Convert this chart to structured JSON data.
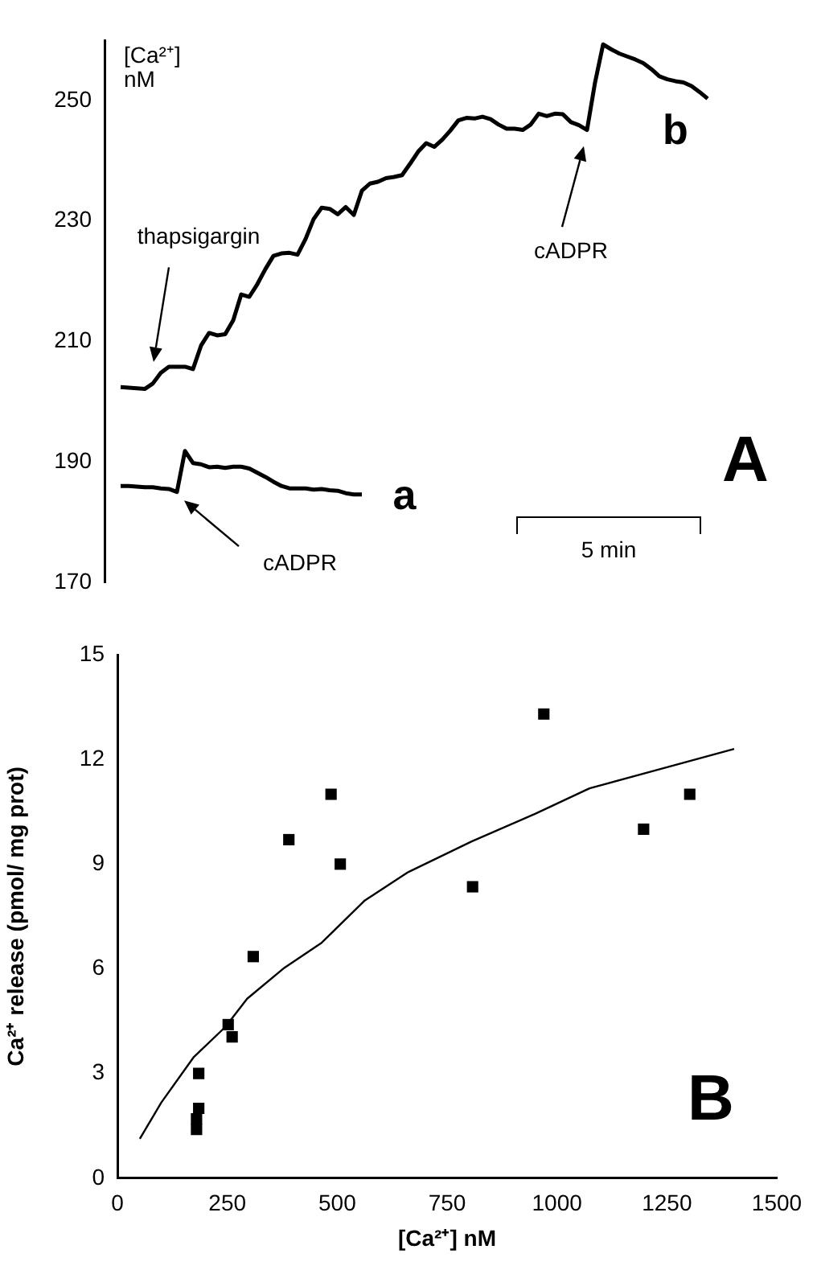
{
  "chart_data": [
    {
      "type": "line",
      "ylabel": "[Ca²⁺] nM",
      "categories": [
        null,
        null,
        null,
        null,
        null,
        null,
        null,
        null,
        null,
        null,
        null,
        null,
        null,
        null,
        null,
        null,
        null,
        null,
        null,
        null,
        null,
        null,
        null,
        null,
        null,
        null,
        null,
        null,
        null,
        null,
        null,
        null,
        null,
        null,
        null,
        null,
        null,
        null,
        null,
        null,
        null,
        null,
        null,
        null,
        null,
        null,
        null,
        null,
        null,
        null,
        null,
        null,
        null,
        null,
        null,
        null,
        null,
        null,
        null,
        null,
        null,
        null,
        null,
        null,
        null,
        null,
        null,
        null,
        null,
        null,
        null,
        null,
        null,
        null,
        null,
        null,
        null,
        null,
        null,
        null,
        null,
        null,
        null
      ],
      "series": [
        {
          "name": "b",
          "color": "#000000",
          "values": [
            null,
            null,
            202.4,
            202.3,
            202.2,
            202.1,
            203.0,
            204.8,
            205.8,
            205.8,
            205.8,
            205.4,
            209.3,
            211.4,
            211.0,
            211.2,
            213.5,
            217.8,
            217.4,
            219.5,
            222.0,
            224.2,
            224.6,
            224.7,
            224.4,
            227.0,
            230.3,
            232.2,
            232.0,
            231.1,
            232.3,
            231.0,
            235.0,
            236.2,
            236.5,
            237.1,
            237.3,
            237.6,
            239.5,
            241.5,
            242.9,
            242.3,
            243.5,
            245.0,
            246.7,
            247.1,
            247.0,
            247.3,
            246.9,
            246.0,
            245.3,
            245.3,
            245.1,
            246.0,
            247.8,
            247.4,
            247.8,
            247.7,
            246.4,
            245.9,
            245.1,
            253.0,
            259.3,
            258.5,
            257.8,
            257.3,
            256.8,
            256.2,
            255.2,
            254.0,
            253.5,
            253.2,
            253.0,
            252.4,
            251.4,
            250.3,
            null,
            null,
            null,
            null,
            null,
            null,
            null
          ]
        },
        {
          "name": "a",
          "color": "#000000",
          "values": [
            null,
            null,
            186.0,
            186.0,
            185.9,
            185.8,
            185.8,
            185.6,
            185.5,
            185.0,
            191.8,
            189.8,
            189.6,
            189.1,
            189.2,
            189.0,
            189.2,
            189.2,
            188.9,
            188.2,
            187.5,
            186.7,
            186.0,
            185.6,
            185.6,
            185.6,
            185.4,
            185.5,
            185.3,
            185.2,
            184.8,
            184.6,
            184.6,
            null,
            null,
            null,
            null,
            null,
            null,
            null,
            null,
            null,
            null,
            null,
            null,
            null,
            null,
            null,
            null,
            null,
            null,
            null,
            null,
            null,
            null,
            null,
            null,
            null,
            null,
            null,
            null,
            null,
            null,
            null,
            null,
            null,
            null,
            null,
            null,
            null,
            null,
            null,
            null,
            null,
            null,
            null,
            null,
            null,
            null,
            null,
            null,
            null,
            null
          ]
        }
      ],
      "ylim": [
        170,
        260
      ],
      "yticks": [
        170,
        190,
        210,
        230,
        250
      ],
      "tick_labels": "y",
      "annotations": [
        "thapsigargin",
        "cADPR",
        "cADPR",
        "5 min",
        "A"
      ]
    },
    {
      "type": "scatter",
      "xlabel": "[Ca²⁺] nM",
      "ylabel": "Ca²⁺ release (pmol/ mg prot)",
      "series": [
        {
          "color": "#000000",
          "marker": "square",
          "x": [
            180,
            180,
            185,
            185,
            252,
            261,
            309,
            390,
            486,
            507,
            808,
            970,
            1197,
            1302
          ],
          "values": [
            1.4,
            1.7,
            2.0,
            3.0,
            4.4,
            4.05,
            6.35,
            9.7,
            11.0,
            9.0,
            8.35,
            13.3,
            10.0,
            11.0
          ]
        },
        {
          "type": "line",
          "color": "#000000",
          "marker": "none",
          "x": [
            51,
            100,
            173,
            246,
            295,
            380,
            465,
            563,
            660,
            806,
            952,
            1074,
            1257,
            1403
          ],
          "values": [
            1.13,
            2.17,
            3.46,
            4.34,
            5.14,
            6.03,
            6.75,
            7.96,
            8.76,
            9.65,
            10.45,
            11.17,
            11.8,
            12.3
          ]
        }
      ],
      "xlim": [
        0,
        1500
      ],
      "xticks": [
        0,
        250,
        500,
        750,
        1000,
        1250,
        1500
      ],
      "ylim": [
        0,
        15
      ],
      "yticks": [
        0,
        3,
        6,
        9,
        12,
        15
      ],
      "annotations": [
        "B"
      ]
    }
  ]
}
